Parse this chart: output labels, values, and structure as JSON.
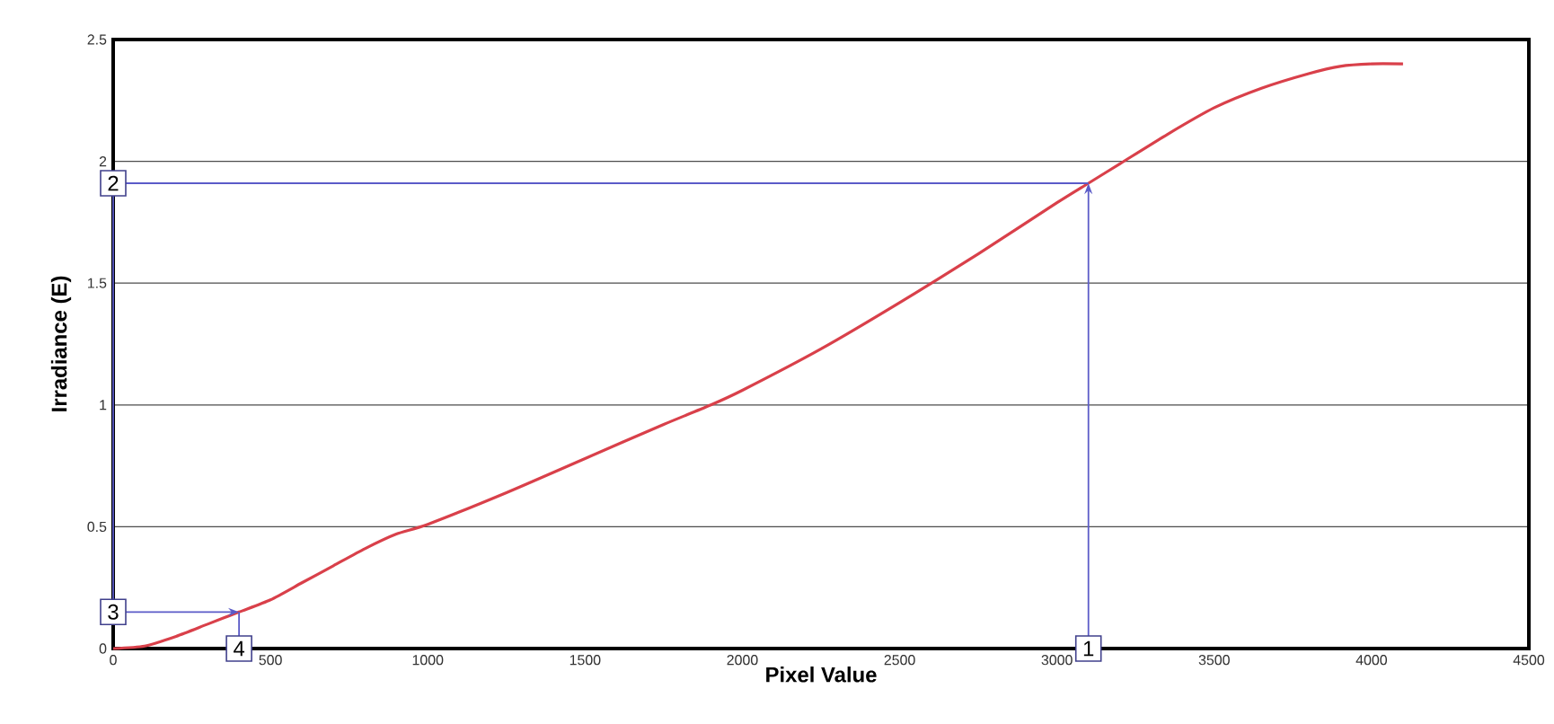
{
  "chart_data": {
    "type": "line",
    "xlabel": "Pixel Value",
    "ylabel": "Irradiance (E)",
    "x": [
      0,
      100,
      200,
      300,
      400,
      500,
      600,
      700,
      800,
      900,
      1000,
      1250,
      1500,
      1750,
      1900,
      2000,
      2250,
      2500,
      2750,
      3000,
      3100,
      3200,
      3350,
      3500,
      3650,
      3800,
      3900,
      4000,
      4100
    ],
    "series": [
      {
        "color": "#d9404a",
        "values": [
          0,
          0.01,
          0.05,
          0.1,
          0.15,
          0.2,
          0.27,
          0.34,
          0.41,
          0.47,
          0.51,
          0.64,
          0.78,
          0.92,
          1.0,
          1.06,
          1.23,
          1.42,
          1.62,
          1.83,
          1.91,
          1.99,
          2.11,
          2.22,
          2.3,
          2.36,
          2.39,
          2.4,
          2.4
        ]
      }
    ],
    "xlim": [
      0,
      4500
    ],
    "xticks": [
      0,
      500,
      1000,
      1500,
      2000,
      2500,
      3000,
      3500,
      4000,
      4500
    ],
    "ylim": [
      0,
      2.5
    ],
    "yticks": [
      0,
      0.5,
      1,
      1.5,
      2,
      2.5
    ],
    "grid": "y",
    "marker": "none",
    "line_style": "solid",
    "annotations": [
      {
        "text": "1",
        "x": 3100,
        "y": 0
      },
      {
        "text": "2",
        "x": 0,
        "y": 1.91
      },
      {
        "text": "3",
        "x": 0,
        "y": 0.15
      },
      {
        "text": "4",
        "x": 400,
        "y": 0
      }
    ]
  }
}
